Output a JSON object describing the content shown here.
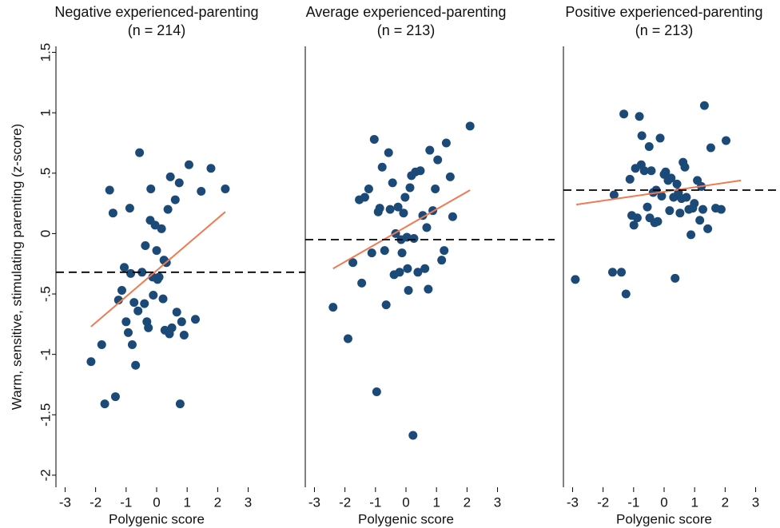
{
  "chart_data": [
    {
      "type": "scatter",
      "title": "Negative experienced-parenting",
      "subtitle": "(n = 214)",
      "xlabel": "Polygenic score",
      "ylabel": "Warm, sensitive, stimulating parenting (z-score)",
      "color": "#1c4a78",
      "x": [
        -2.15,
        -1.8,
        -1.7,
        -1.54,
        -1.43,
        -1.35,
        -1.25,
        -1.14,
        -1.06,
        -1.0,
        -0.93,
        -0.88,
        -0.85,
        -0.8,
        -0.74,
        -0.69,
        -0.61,
        -0.56,
        -0.48,
        -0.4,
        -0.37,
        -0.32,
        -0.27,
        -0.21,
        -0.19,
        -0.13,
        -0.11,
        -0.05,
        0,
        0.03,
        0.08,
        0.16,
        0.21,
        0.24,
        0.27,
        0.32,
        0.37,
        0.42,
        0.45,
        0.5,
        0.61,
        0.66,
        0.74,
        0.77,
        0.82,
        0.9,
        1.06,
        1.27,
        1.46,
        1.78,
        2.25
      ],
      "values": [
        -1.06,
        -0.92,
        -1.41,
        0.36,
        0.17,
        -1.35,
        -0.55,
        -0.47,
        -0.28,
        -0.73,
        -0.82,
        0.21,
        -0.33,
        -0.92,
        -0.57,
        -1.09,
        -0.64,
        0.67,
        -0.32,
        -0.58,
        -0.1,
        -0.73,
        -0.78,
        0.11,
        0.37,
        -0.36,
        -0.51,
        0.07,
        -0.14,
        -0.38,
        -0.36,
        0.04,
        -0.54,
        -0.22,
        -0.8,
        -0.24,
        0.2,
        -0.83,
        0.47,
        -0.78,
        0.28,
        -0.65,
        0.42,
        -1.41,
        -0.73,
        -0.84,
        0.57,
        -0.71,
        0.35,
        0.54,
        0.37
      ],
      "fit_line": {
        "x": [
          -2.15,
          2.25
        ],
        "values": [
          -0.77,
          0.18
        ],
        "color": "#f07a52"
      },
      "reference_line": {
        "value": -0.32,
        "color": "#000000"
      },
      "xlim": [
        -3.3,
        3.3
      ],
      "xticks": [
        -3,
        -2,
        -1,
        0,
        1,
        2,
        3
      ],
      "ylim": [
        -2.1,
        1.55
      ],
      "yticks": [
        -2,
        {
          "value": -1.5,
          "label": "-1.5"
        },
        -1,
        {
          "value": -0.5,
          "label": "-.5"
        },
        0,
        {
          "value": 0.5,
          "label": ".5"
        },
        1,
        1.5
      ]
    },
    {
      "type": "scatter",
      "title": "Average experienced-parenting",
      "subtitle": "(n = 213)",
      "xlabel": "Polygenic score",
      "color": "#1c4a78",
      "x": [
        -2.39,
        -1.9,
        -1.74,
        -1.53,
        -1.45,
        -1.35,
        -1.22,
        -1.12,
        -1.04,
        -0.96,
        -0.91,
        -0.86,
        -0.78,
        -0.7,
        -0.65,
        -0.57,
        -0.52,
        -0.44,
        -0.39,
        -0.34,
        -0.26,
        -0.21,
        -0.16,
        -0.13,
        -0.08,
        -0.03,
        0.03,
        0.05,
        0.08,
        0.13,
        0.18,
        0.23,
        0.26,
        0.31,
        0.39,
        0.47,
        0.55,
        0.62,
        0.68,
        0.73,
        0.78,
        0.88,
        0.96,
        1.04,
        1.17,
        1.25,
        1.32,
        1.45,
        1.53,
        2.1
      ],
      "values": [
        -0.61,
        -0.87,
        -0.24,
        0.28,
        -0.41,
        0.3,
        0.37,
        -0.16,
        0.78,
        -1.31,
        0.18,
        0.21,
        0.55,
        -0.14,
        -0.59,
        0.67,
        0.2,
        0.42,
        -0.34,
        0.0,
        0.22,
        -0.32,
        -0.05,
        -0.16,
        0.17,
        0.3,
        -0.03,
        -0.29,
        -0.47,
        0.38,
        0.48,
        -1.67,
        -0.04,
        0.51,
        -0.32,
        0.52,
        0.15,
        -0.29,
        0.05,
        -0.46,
        0.69,
        0.19,
        0.37,
        0.61,
        -0.22,
        -0.14,
        0.75,
        0.47,
        0.14,
        0.89
      ],
      "fit_line": {
        "x": [
          -2.39,
          2.1
        ],
        "values": [
          -0.29,
          0.36
        ],
        "color": "#f07a52"
      },
      "reference_line": {
        "value": -0.05,
        "color": "#000000"
      },
      "xlim": [
        -3.3,
        3.3
      ],
      "xticks": [
        -3,
        -2,
        -1,
        0,
        1,
        2,
        3
      ],
      "ylim": [
        -2.1,
        1.55
      ]
    },
    {
      "type": "scatter",
      "title": "Positive experienced-parenting",
      "subtitle": "(n = 213)",
      "xlabel": "Polygenic score",
      "color": "#1c4a78",
      "x": [
        -2.91,
        -1.69,
        -1.64,
        -1.4,
        -1.32,
        -1.25,
        -1.12,
        -1.06,
        -0.99,
        -0.94,
        -0.88,
        -0.81,
        -0.75,
        -0.73,
        -0.65,
        -0.55,
        -0.49,
        -0.47,
        -0.42,
        -0.36,
        -0.31,
        -0.26,
        -0.21,
        -0.13,
        -0.08,
        0,
        0.05,
        0.13,
        0.18,
        0.23,
        0.31,
        0.36,
        0.42,
        0.47,
        0.52,
        0.57,
        0.62,
        0.68,
        0.73,
        0.81,
        0.88,
        0.94,
        0.99,
        1.09,
        1.17,
        1.22,
        1.27,
        1.32,
        1.43,
        1.53,
        1.69,
        1.87,
        2.03
      ],
      "values": [
        -0.38,
        -0.32,
        0.32,
        -0.32,
        0.99,
        -0.5,
        0.45,
        0.15,
        0.07,
        0.54,
        0.13,
        0.97,
        0.57,
        0.81,
        0.52,
        0.22,
        0.72,
        0.13,
        0.52,
        0.34,
        0.09,
        0.36,
        0.1,
        0.79,
        0.31,
        0.49,
        0.51,
        0.44,
        0.19,
        0.46,
        0.3,
        -0.37,
        0.41,
        0.34,
        0.17,
        0.29,
        0.59,
        0.55,
        0.3,
        0.2,
        -0.01,
        0.21,
        0.25,
        0.44,
        0.11,
        0.39,
        0.2,
        1.06,
        0.04,
        0.71,
        0.21,
        0.2,
        0.77
      ],
      "fit_line": {
        "x": [
          -2.88,
          2.52
        ],
        "values": [
          0.24,
          0.44
        ],
        "color": "#f07a52"
      },
      "reference_line": {
        "value": 0.36,
        "color": "#000000"
      },
      "xlim": [
        -3.3,
        3.3
      ],
      "xticks": [
        -3,
        -2,
        -1,
        0,
        1,
        2,
        3
      ],
      "ylim": [
        -2.1,
        1.55
      ]
    }
  ]
}
